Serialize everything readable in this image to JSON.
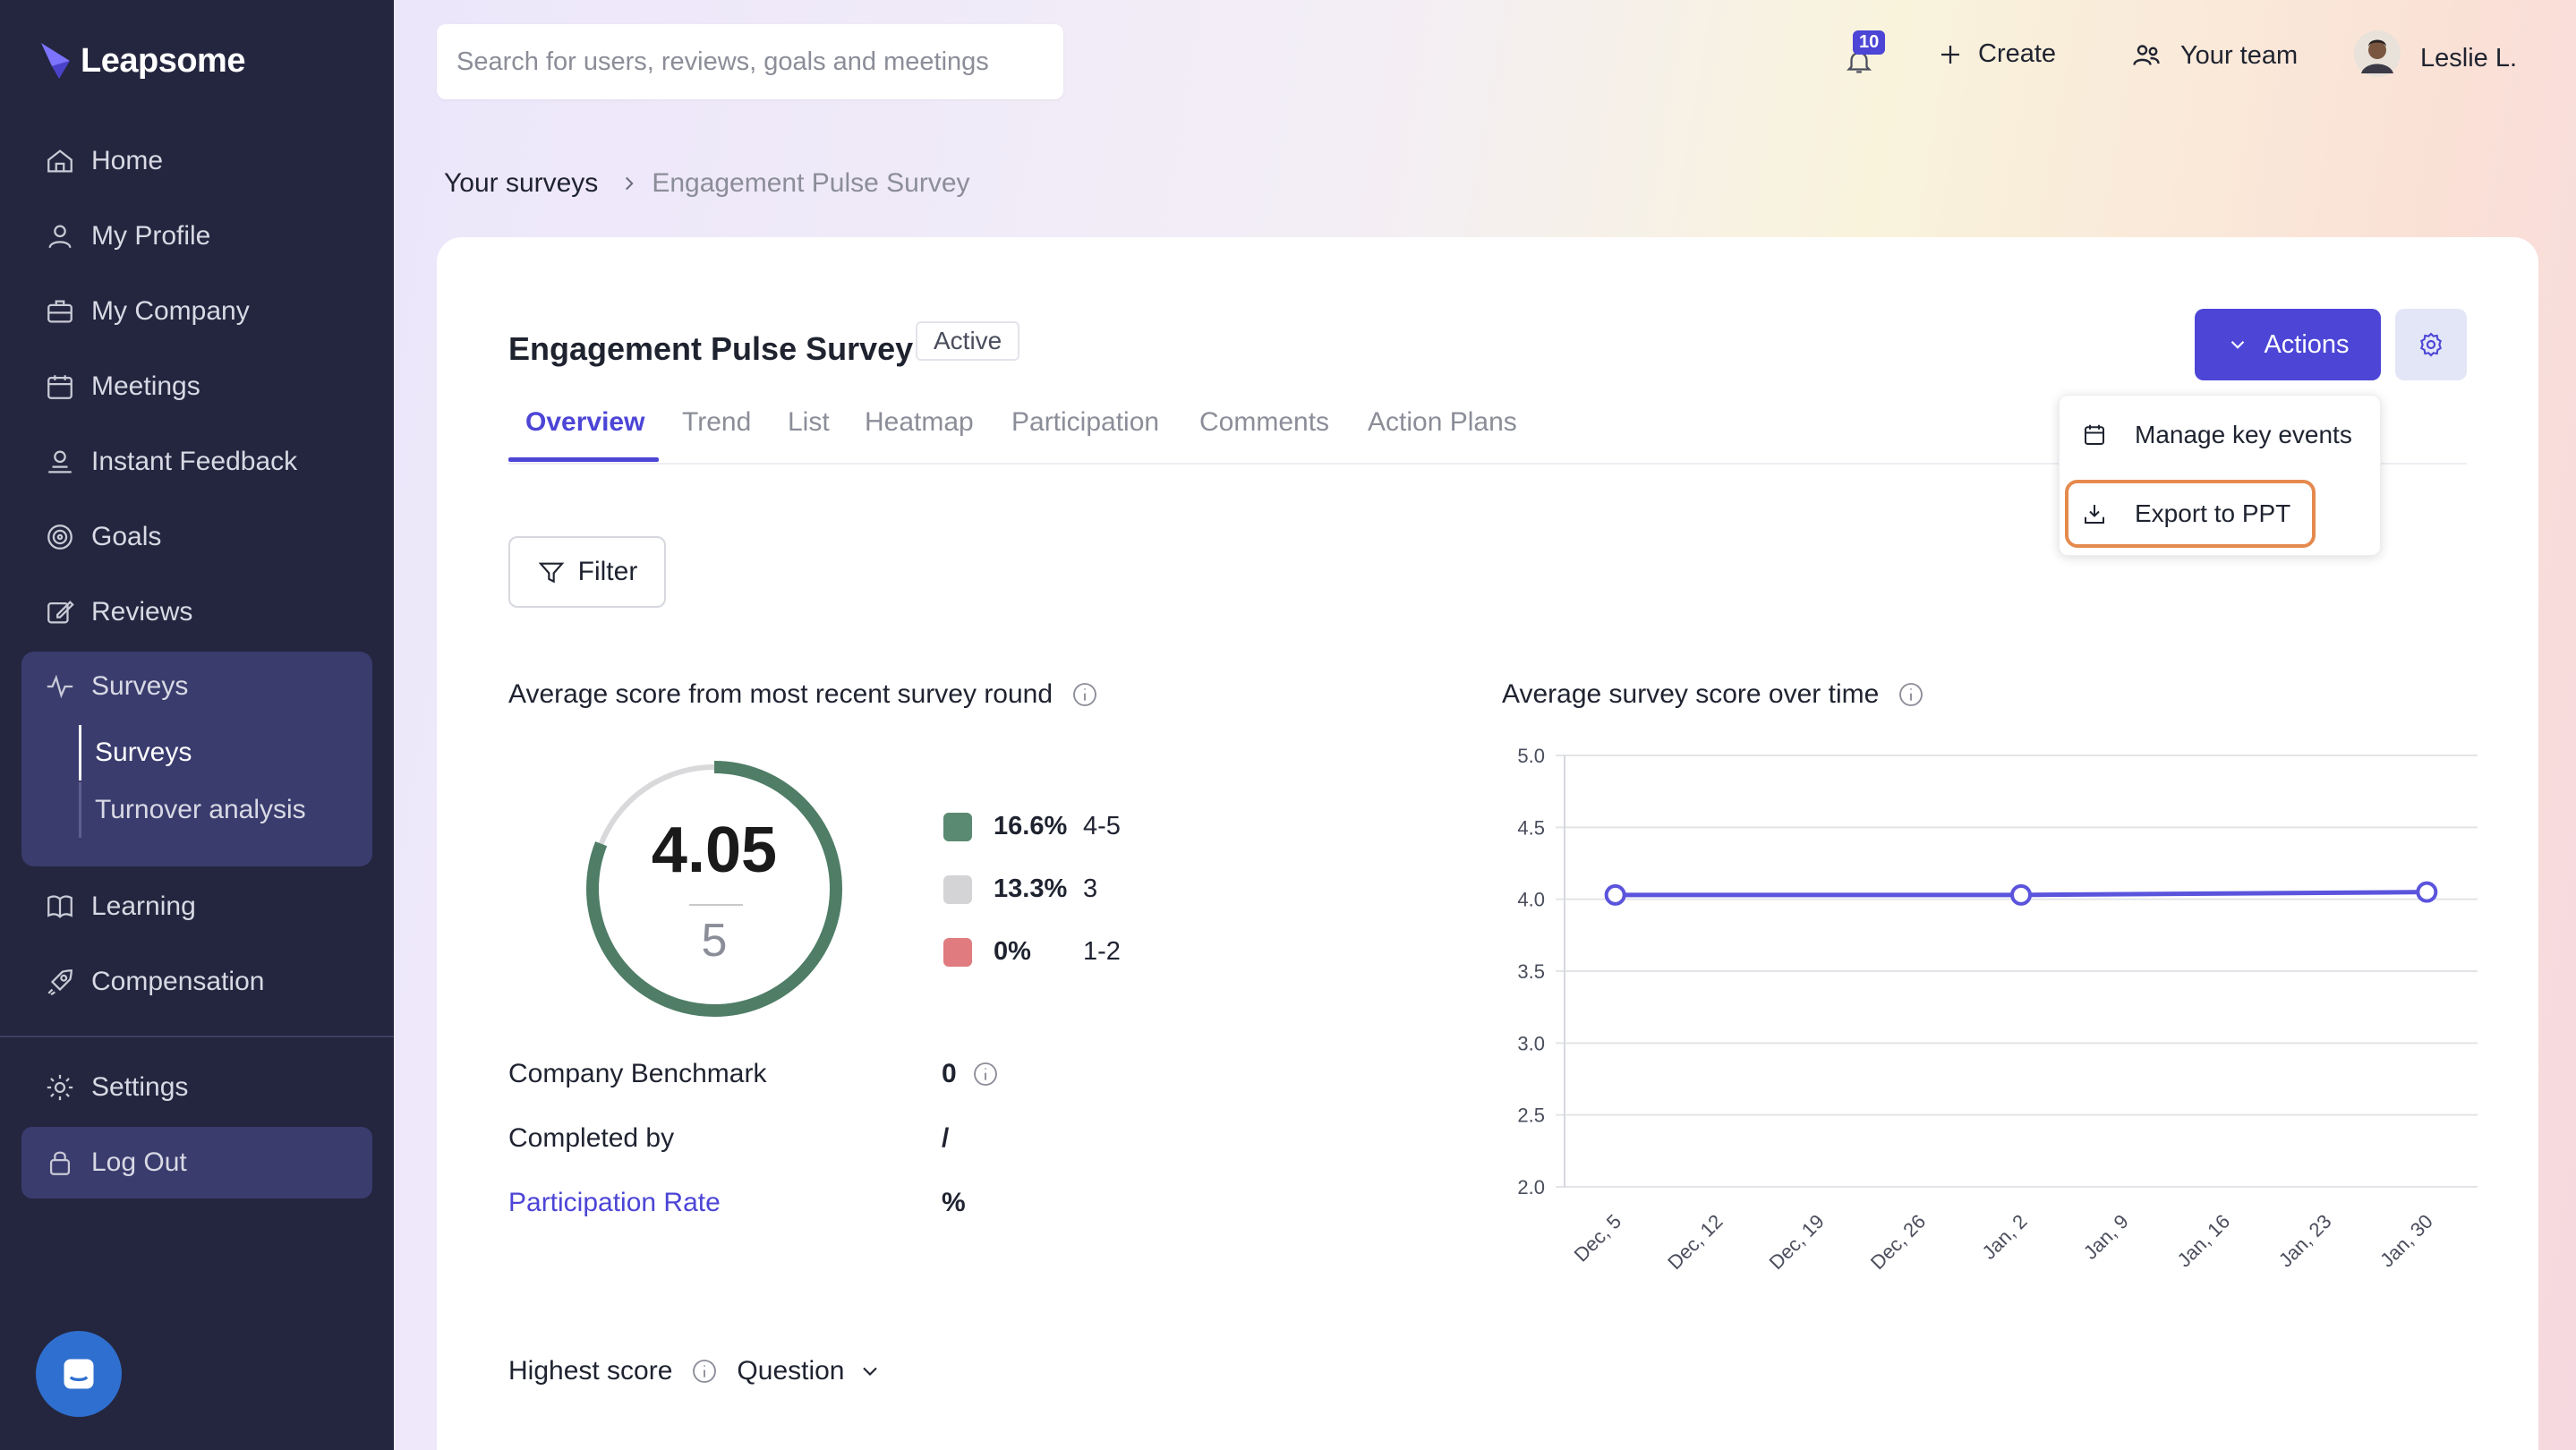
{
  "app": {
    "name": "Leapsome"
  },
  "sidebar": {
    "items": [
      {
        "label": "Home",
        "icon": "home-icon"
      },
      {
        "label": "My Profile",
        "icon": "user-icon"
      },
      {
        "label": "My Company",
        "icon": "briefcase-icon"
      },
      {
        "label": "Meetings",
        "icon": "calendar-icon"
      },
      {
        "label": "Instant Feedback",
        "icon": "feedback-icon"
      },
      {
        "label": "Goals",
        "icon": "target-icon"
      },
      {
        "label": "Reviews",
        "icon": "edit-icon"
      },
      {
        "label": "Surveys",
        "icon": "pulse-icon"
      },
      {
        "label": "Learning",
        "icon": "book-icon"
      },
      {
        "label": "Compensation",
        "icon": "rocket-icon"
      }
    ],
    "surveys_sub": [
      "Surveys",
      "Turnover analysis"
    ],
    "settings_label": "Settings",
    "logout_label": "Log Out"
  },
  "topbar": {
    "search_placeholder": "Search for users, reviews, goals and meetings",
    "notifications_count": "10",
    "create_label": "Create",
    "team_label": "Your team",
    "user_name": "Leslie L."
  },
  "breadcrumb": {
    "parent": "Your surveys",
    "current": "Engagement Pulse Survey"
  },
  "survey": {
    "title": "Engagement Pulse Survey",
    "status": "Active",
    "tabs": [
      "Overview",
      "Trend",
      "List",
      "Heatmap",
      "Participation",
      "Comments",
      "Action Plans"
    ],
    "active_tab": "Overview",
    "actions_label": "Actions",
    "dropdown": {
      "manage_key_events": "Manage key events",
      "export_ppt": "Export to PPT"
    },
    "filter_label": "Filter"
  },
  "score": {
    "heading": "Average score from most recent survey round",
    "value": "4.05",
    "max": "5",
    "ring_fraction": 0.81,
    "legend": [
      {
        "pct": "16.6%",
        "range": "4-5",
        "color": "#5a8a72"
      },
      {
        "pct": "13.3%",
        "range": "3",
        "color": "#d4d4d6"
      },
      {
        "pct": "0%",
        "range": "1-2",
        "color": "#e07b7f"
      }
    ],
    "benchmark_label": "Company Benchmark",
    "benchmark_value": "0",
    "completed_label": "Completed by",
    "completed_value": "/",
    "participation_label": "Participation Rate",
    "participation_value": "%"
  },
  "highest": {
    "label": "Highest score",
    "select": "Question"
  },
  "chart_data": {
    "type": "line",
    "title": "Average survey score over time",
    "xlabel": "",
    "ylabel": "",
    "categories": [
      "Dec, 5",
      "Dec, 12",
      "Dec, 19",
      "Dec, 26",
      "Jan, 2",
      "Jan, 9",
      "Jan, 16",
      "Jan, 23",
      "Jan, 30"
    ],
    "yticks": [
      "5.0",
      "4.5",
      "4.0",
      "3.5",
      "3.0",
      "2.5",
      "2.0"
    ],
    "ylim": [
      2.0,
      5.0
    ],
    "series": [
      {
        "points": [
          {
            "x": "Dec, 5",
            "y": 4.03
          },
          {
            "x": "Jan, 2",
            "y": 4.03
          },
          {
            "x": "Jan, 30",
            "y": 4.05
          }
        ],
        "color": "#5b54dc"
      }
    ],
    "grid": true
  }
}
